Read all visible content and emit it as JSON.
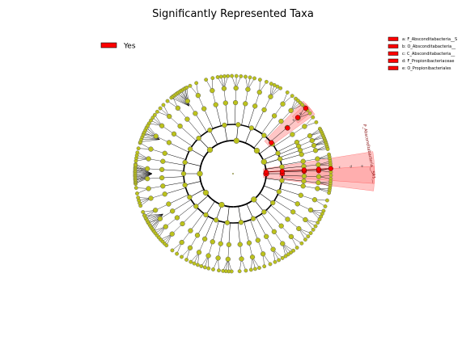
{
  "chart_data": {
    "type": "cladogram",
    "title": "Significantly Represented Taxa",
    "legend": {
      "items": [
        {
          "label": "Yes",
          "color": "#ff0000"
        }
      ],
      "placement": "top-left"
    },
    "clade_key": [
      {
        "letter": "a",
        "label": "a: F_Absconditabacteria__S"
      },
      {
        "letter": "b",
        "label": "b: O_Absconditabacteria__"
      },
      {
        "letter": "c",
        "label": "c: C_Absconditabacteria__"
      },
      {
        "letter": "d",
        "label": "d: F_Propionibacteriaceae"
      },
      {
        "letter": "e",
        "label": "e: O_Propionibacteriales"
      }
    ],
    "side_label": "P_Absconditabacteria__SR1__",
    "colors": {
      "node": "#bcc21c",
      "node_edge": "#555555",
      "highlight": "#ff0000",
      "highlight_fill": "#ff8080",
      "branch": "#000000"
    }
  }
}
